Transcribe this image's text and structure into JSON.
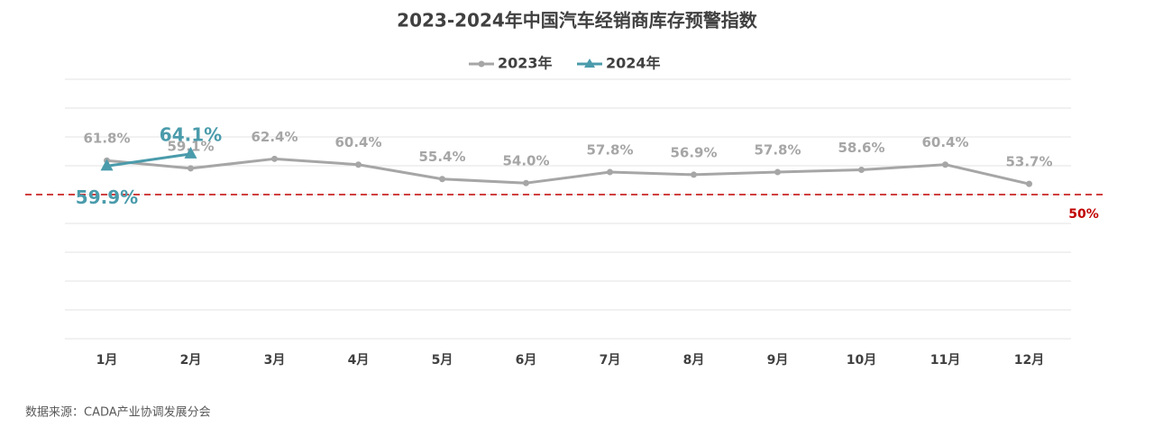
{
  "chart_data": {
    "type": "line",
    "title": "2023-2024年中国汽车经销商库存预警指数",
    "categories": [
      "1月",
      "2月",
      "3月",
      "4月",
      "5月",
      "6月",
      "7月",
      "8月",
      "9月",
      "10月",
      "11月",
      "12月"
    ],
    "series": [
      {
        "name": "2023年",
        "color": "#a6a6a6",
        "values": [
          61.8,
          59.1,
          62.4,
          60.4,
          55.4,
          54.0,
          57.8,
          56.9,
          57.8,
          58.6,
          60.4,
          53.7
        ],
        "value_labels": [
          "61.8%",
          "59.1%",
          "62.4%",
          "60.4%",
          "55.4%",
          "54.0%",
          "57.8%",
          "56.9%",
          "57.8%",
          "58.6%",
          "60.4%",
          "53.7%"
        ]
      },
      {
        "name": "2024年",
        "color": "#4a9bab",
        "values": [
          59.9,
          64.1,
          null,
          null,
          null,
          null,
          null,
          null,
          null,
          null,
          null,
          null
        ],
        "value_labels": [
          "59.9%",
          "64.1%",
          null,
          null,
          null,
          null,
          null,
          null,
          null,
          null,
          null,
          null
        ]
      }
    ],
    "ylim": [
      0,
      90
    ],
    "yticks": [
      0,
      10,
      20,
      30,
      40,
      50,
      60,
      70,
      80,
      90
    ],
    "grid": true,
    "threshold": {
      "value": 50,
      "label": "50%",
      "color": "#c00000"
    },
    "source": "数据来源：CADA产业协调发展分会"
  }
}
